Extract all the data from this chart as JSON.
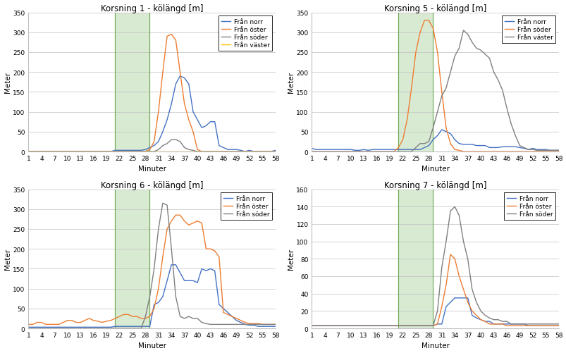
{
  "x_ticks": [
    1,
    4,
    7,
    10,
    13,
    16,
    19,
    22,
    25,
    28,
    31,
    34,
    37,
    40,
    43,
    46,
    49,
    52,
    55,
    58
  ],
  "x_values": [
    1,
    2,
    3,
    4,
    5,
    6,
    7,
    8,
    9,
    10,
    11,
    12,
    13,
    14,
    15,
    16,
    17,
    18,
    19,
    20,
    21,
    22,
    23,
    24,
    25,
    26,
    27,
    28,
    29,
    30,
    31,
    32,
    33,
    34,
    35,
    36,
    37,
    38,
    39,
    40,
    41,
    42,
    43,
    44,
    45,
    46,
    47,
    48,
    49,
    50,
    51,
    52,
    53,
    54,
    55,
    56,
    57,
    58
  ],
  "green_rect_x_start": 21,
  "green_rect_x_end": 29,
  "green_color": "#d9ead3",
  "green_edge_color": "#6aa84f",
  "k1": {
    "title": "Korsning 1 - kölängd [m]",
    "ylim": [
      0,
      350
    ],
    "yticks": [
      0,
      50,
      100,
      150,
      200,
      250,
      300,
      350
    ],
    "norr": [
      0,
      0,
      0,
      0,
      0,
      0,
      0,
      0,
      0,
      0,
      0,
      0,
      0,
      0,
      0,
      0,
      0,
      0,
      0,
      0,
      3,
      3,
      3,
      3,
      3,
      3,
      3,
      5,
      10,
      15,
      25,
      50,
      80,
      120,
      170,
      190,
      185,
      170,
      100,
      80,
      60,
      65,
      75,
      75,
      15,
      10,
      5,
      5,
      5,
      3,
      0,
      3,
      0,
      0,
      0,
      0,
      0,
      3
    ],
    "oester": [
      0,
      0,
      0,
      0,
      0,
      0,
      0,
      0,
      0,
      0,
      0,
      0,
      0,
      0,
      0,
      0,
      0,
      0,
      0,
      0,
      0,
      0,
      0,
      0,
      0,
      0,
      0,
      0,
      5,
      25,
      100,
      200,
      290,
      295,
      280,
      200,
      120,
      80,
      50,
      5,
      0,
      0,
      0,
      0,
      0,
      0,
      0,
      0,
      0,
      0,
      0,
      0,
      0,
      0,
      0,
      0,
      0,
      0
    ],
    "soeder": [
      0,
      0,
      0,
      0,
      0,
      0,
      0,
      0,
      0,
      0,
      0,
      0,
      0,
      0,
      0,
      0,
      0,
      0,
      0,
      0,
      0,
      0,
      0,
      0,
      0,
      0,
      0,
      0,
      0,
      0,
      5,
      15,
      20,
      30,
      30,
      25,
      10,
      5,
      3,
      0,
      0,
      0,
      0,
      0,
      0,
      0,
      0,
      0,
      0,
      0,
      0,
      0,
      0,
      0,
      0,
      0,
      0,
      0
    ],
    "vaester": [
      0,
      0,
      0,
      0,
      0,
      0,
      0,
      0,
      0,
      0,
      0,
      0,
      0,
      0,
      0,
      0,
      0,
      0,
      0,
      0,
      0,
      0,
      0,
      0,
      0,
      0,
      0,
      0,
      0,
      0,
      0,
      0,
      0,
      0,
      0,
      0,
      0,
      0,
      0,
      0,
      0,
      0,
      0,
      0,
      0,
      0,
      0,
      0,
      0,
      0,
      0,
      0,
      0,
      0,
      0,
      0,
      0,
      0
    ],
    "legend": [
      "Från norr",
      "Från öster",
      "Från söder",
      "Från väster"
    ],
    "colors": [
      "#4472c4",
      "#ed7d31",
      "#808080",
      "#ffc000"
    ]
  },
  "k5": {
    "title": "Korsning 5 - kölängd [m]",
    "ylim": [
      0,
      350
    ],
    "yticks": [
      0,
      50,
      100,
      150,
      200,
      250,
      300,
      350
    ],
    "norr": [
      8,
      5,
      5,
      5,
      5,
      5,
      5,
      5,
      5,
      5,
      3,
      3,
      5,
      3,
      5,
      5,
      5,
      5,
      5,
      5,
      5,
      5,
      5,
      5,
      5,
      5,
      10,
      15,
      30,
      40,
      55,
      50,
      45,
      30,
      20,
      18,
      18,
      18,
      15,
      15,
      15,
      10,
      10,
      10,
      12,
      12,
      12,
      12,
      10,
      8,
      5,
      8,
      5,
      5,
      5,
      3,
      3,
      3
    ],
    "soeder": [
      0,
      0,
      0,
      0,
      0,
      0,
      0,
      0,
      0,
      0,
      0,
      0,
      0,
      0,
      0,
      0,
      0,
      0,
      0,
      0,
      10,
      30,
      80,
      160,
      250,
      300,
      330,
      330,
      310,
      250,
      150,
      60,
      20,
      5,
      3,
      0,
      0,
      0,
      0,
      0,
      0,
      0,
      0,
      0,
      0,
      0,
      0,
      0,
      0,
      0,
      0,
      0,
      0,
      0,
      0,
      0,
      0,
      0
    ],
    "vaester": [
      0,
      0,
      0,
      0,
      0,
      0,
      0,
      0,
      0,
      0,
      0,
      0,
      0,
      0,
      0,
      0,
      0,
      0,
      0,
      0,
      0,
      0,
      0,
      0,
      10,
      20,
      20,
      25,
      60,
      100,
      140,
      160,
      200,
      240,
      260,
      305,
      295,
      275,
      260,
      255,
      245,
      235,
      200,
      180,
      155,
      110,
      70,
      40,
      15,
      10,
      5,
      5,
      3,
      3,
      3,
      3,
      3,
      3
    ],
    "legend": [
      "Från norr",
      "Från söder",
      "Från väster"
    ],
    "colors": [
      "#4472c4",
      "#ed7d31",
      "#808080"
    ]
  },
  "k6": {
    "title": "Korsning 6 - kölängd [m]",
    "ylim": [
      0,
      350
    ],
    "yticks": [
      0,
      50,
      100,
      150,
      200,
      250,
      300,
      350
    ],
    "norr": [
      3,
      3,
      3,
      3,
      3,
      3,
      3,
      3,
      3,
      3,
      3,
      3,
      3,
      3,
      3,
      3,
      3,
      3,
      3,
      3,
      5,
      5,
      5,
      5,
      5,
      5,
      5,
      5,
      5,
      60,
      65,
      80,
      120,
      160,
      160,
      140,
      120,
      120,
      120,
      115,
      150,
      145,
      150,
      145,
      60,
      50,
      40,
      30,
      20,
      15,
      10,
      8,
      8,
      5,
      5,
      5,
      5,
      5
    ],
    "oester": [
      10,
      10,
      15,
      15,
      10,
      10,
      10,
      10,
      15,
      20,
      20,
      15,
      15,
      20,
      25,
      20,
      18,
      15,
      18,
      20,
      25,
      30,
      35,
      35,
      30,
      30,
      25,
      25,
      30,
      50,
      100,
      180,
      250,
      270,
      285,
      285,
      270,
      260,
      265,
      270,
      265,
      200,
      200,
      195,
      180,
      40,
      35,
      30,
      25,
      20,
      15,
      12,
      12,
      12,
      10,
      10,
      10,
      10
    ],
    "soeder": [
      0,
      0,
      0,
      0,
      0,
      0,
      0,
      0,
      0,
      0,
      0,
      0,
      0,
      0,
      0,
      0,
      0,
      0,
      0,
      0,
      0,
      0,
      0,
      0,
      0,
      0,
      0,
      30,
      80,
      150,
      250,
      315,
      310,
      200,
      80,
      30,
      25,
      30,
      25,
      25,
      15,
      12,
      10,
      10,
      10,
      10,
      10,
      10,
      10,
      10,
      10,
      10,
      10,
      10,
      10,
      10,
      10,
      10
    ],
    "legend": [
      "Från norr",
      "Från öster",
      "Från söder"
    ],
    "colors": [
      "#4472c4",
      "#ed7d31",
      "#808080"
    ]
  },
  "k7": {
    "title": "Korsning 7 - kölängd [m]",
    "ylim": [
      0,
      160
    ],
    "yticks": [
      0,
      20,
      40,
      60,
      80,
      100,
      120,
      140,
      160
    ],
    "norr": [
      3,
      3,
      3,
      3,
      3,
      3,
      3,
      3,
      3,
      3,
      3,
      3,
      3,
      3,
      3,
      3,
      3,
      3,
      3,
      3,
      3,
      3,
      3,
      3,
      3,
      3,
      3,
      3,
      3,
      5,
      5,
      25,
      30,
      35,
      35,
      35,
      35,
      15,
      12,
      10,
      8,
      8,
      5,
      5,
      5,
      5,
      5,
      5,
      5,
      5,
      3,
      3,
      3,
      3,
      3,
      3,
      3,
      3
    ],
    "oester": [
      3,
      3,
      3,
      3,
      3,
      3,
      3,
      3,
      3,
      3,
      3,
      3,
      3,
      3,
      3,
      3,
      3,
      3,
      3,
      3,
      3,
      3,
      3,
      3,
      3,
      3,
      3,
      3,
      3,
      5,
      25,
      50,
      85,
      80,
      60,
      45,
      30,
      20,
      15,
      10,
      8,
      5,
      5,
      5,
      5,
      3,
      3,
      3,
      3,
      3,
      3,
      3,
      3,
      3,
      3,
      3,
      3,
      3
    ],
    "soeder": [
      3,
      3,
      3,
      3,
      3,
      3,
      3,
      3,
      3,
      3,
      3,
      3,
      3,
      3,
      3,
      3,
      3,
      3,
      3,
      3,
      3,
      3,
      3,
      3,
      3,
      3,
      3,
      3,
      3,
      20,
      70,
      100,
      135,
      140,
      130,
      100,
      80,
      45,
      30,
      20,
      15,
      12,
      10,
      10,
      8,
      8,
      5,
      5,
      5,
      5,
      5,
      5,
      5,
      5,
      5,
      5,
      5,
      5
    ],
    "legend": [
      "Från norr",
      "Från öster",
      "Från söder"
    ],
    "colors": [
      "#4472c4",
      "#ed7d31",
      "#808080"
    ]
  }
}
